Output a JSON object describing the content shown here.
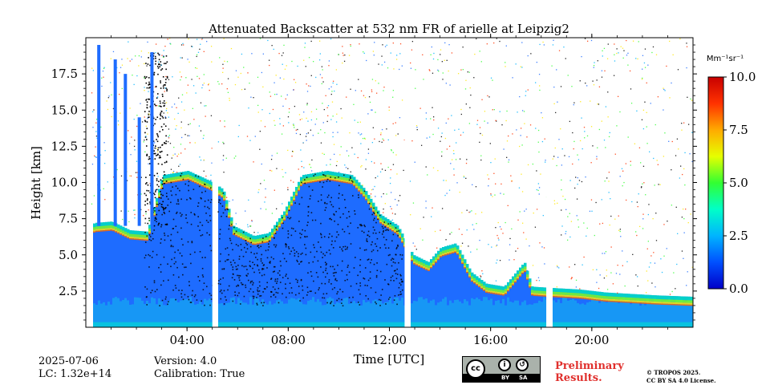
{
  "chart_data": {
    "type": "heatmap",
    "title": "Attenuated Backscatter at 532 nm FR of arielle at Leipzig2",
    "xlabel": "Time [UTC]",
    "ylabel": "Height [km]",
    "xlim": [
      0,
      24
    ],
    "ylim": [
      0,
      20
    ],
    "xticks": [
      4,
      8,
      12,
      16,
      20
    ],
    "xtick_labels": [
      "04:00",
      "08:00",
      "12:00",
      "16:00",
      "20:00"
    ],
    "yticks": [
      2.5,
      5.0,
      7.5,
      10.0,
      12.5,
      15.0,
      17.5
    ],
    "ytick_labels": [
      "2.5",
      "5.0",
      "7.5",
      "10.0",
      "12.5",
      "15.0",
      "17.5"
    ],
    "colorbar": {
      "label": "Mm⁻¹sr⁻¹",
      "min": 0.0,
      "max": 10.0,
      "ticks": [
        0.0,
        2.5,
        5.0,
        7.5,
        10.0
      ],
      "tick_labels": [
        "0.0",
        "2.5",
        "5.0",
        "7.5",
        "10.0"
      ],
      "colormap": [
        "#0000c8",
        "#0050ff",
        "#00b4ff",
        "#00ffc8",
        "#32ff32",
        "#e6ff00",
        "#ffaa00",
        "#ff3200",
        "#c80000"
      ]
    },
    "data_gaps_utc": [
      [
        0.0,
        0.2
      ],
      [
        5.0,
        5.2
      ],
      [
        12.6,
        12.8
      ],
      [
        18.2,
        18.4
      ]
    ],
    "cloud_top_profile_km": [
      [
        0.0,
        6.5
      ],
      [
        0.3,
        7.2
      ],
      [
        1.0,
        7.3
      ],
      [
        1.7,
        6.7
      ],
      [
        2.4,
        6.6
      ],
      [
        3.0,
        10.5
      ],
      [
        4.0,
        10.8
      ],
      [
        5.0,
        10.0
      ],
      [
        5.4,
        9.5
      ],
      [
        5.8,
        7.0
      ],
      [
        6.6,
        6.3
      ],
      [
        7.2,
        6.5
      ],
      [
        7.8,
        8.0
      ],
      [
        8.5,
        10.5
      ],
      [
        9.5,
        10.8
      ],
      [
        10.5,
        10.5
      ],
      [
        11.0,
        9.5
      ],
      [
        11.6,
        7.8
      ],
      [
        12.3,
        7.0
      ],
      [
        12.9,
        5.0
      ],
      [
        13.5,
        4.5
      ],
      [
        14.0,
        5.5
      ],
      [
        14.6,
        5.8
      ],
      [
        15.2,
        3.8
      ],
      [
        15.8,
        3.0
      ],
      [
        16.5,
        2.8
      ],
      [
        17.3,
        4.5
      ],
      [
        17.6,
        2.8
      ],
      [
        18.5,
        2.7
      ],
      [
        19.5,
        2.6
      ],
      [
        20.5,
        2.4
      ],
      [
        21.5,
        2.3
      ],
      [
        22.5,
        2.2
      ],
      [
        24.0,
        2.1
      ]
    ]
  },
  "footer": {
    "date": "2025-07-06",
    "lc": "LC: 1.32e+14",
    "version": "Version: 4.0",
    "calibration": "Calibration: True",
    "preliminary_line1": "Preliminary",
    "preliminary_line2": "Results.",
    "copyright_line1": "© TROPOS 2025.",
    "copyright_line2": "CC BY SA 4.0 License.",
    "cc_badge": {
      "cc": "cc",
      "by": "BY",
      "sa": "SA"
    }
  }
}
